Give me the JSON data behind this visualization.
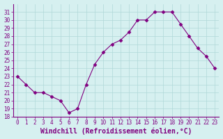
{
  "hours": [
    0,
    1,
    2,
    3,
    4,
    5,
    6,
    7,
    8,
    9,
    10,
    11,
    12,
    13,
    14,
    15,
    16,
    17,
    18,
    19,
    20,
    21,
    22,
    23
  ],
  "values": [
    23,
    22,
    21,
    21,
    20.5,
    20,
    18.5,
    19,
    22,
    24.5,
    26,
    27,
    27.5,
    28.5,
    30,
    30,
    31,
    31,
    31,
    29.5,
    28,
    26.5,
    25.5,
    24
  ],
  "line_color": "#800080",
  "marker": "D",
  "marker_size": 2.5,
  "bg_color": "#d6f0f0",
  "grid_color": "#b0d8d8",
  "xlabel": "Windchill (Refroidissement éolien,°C)",
  "xlabel_color": "#800080",
  "ylim": [
    18,
    32
  ],
  "yticks": [
    18,
    19,
    20,
    21,
    22,
    23,
    24,
    25,
    26,
    27,
    28,
    29,
    30,
    31
  ],
  "xticks": [
    0,
    1,
    2,
    3,
    4,
    5,
    6,
    7,
    8,
    9,
    10,
    11,
    12,
    13,
    14,
    15,
    16,
    17,
    18,
    19,
    20,
    21,
    22,
    23
  ],
  "tick_label_color": "#800080",
  "tick_label_fontsize": 5.5,
  "xlabel_fontsize": 7.0,
  "spine_color": "#800080"
}
